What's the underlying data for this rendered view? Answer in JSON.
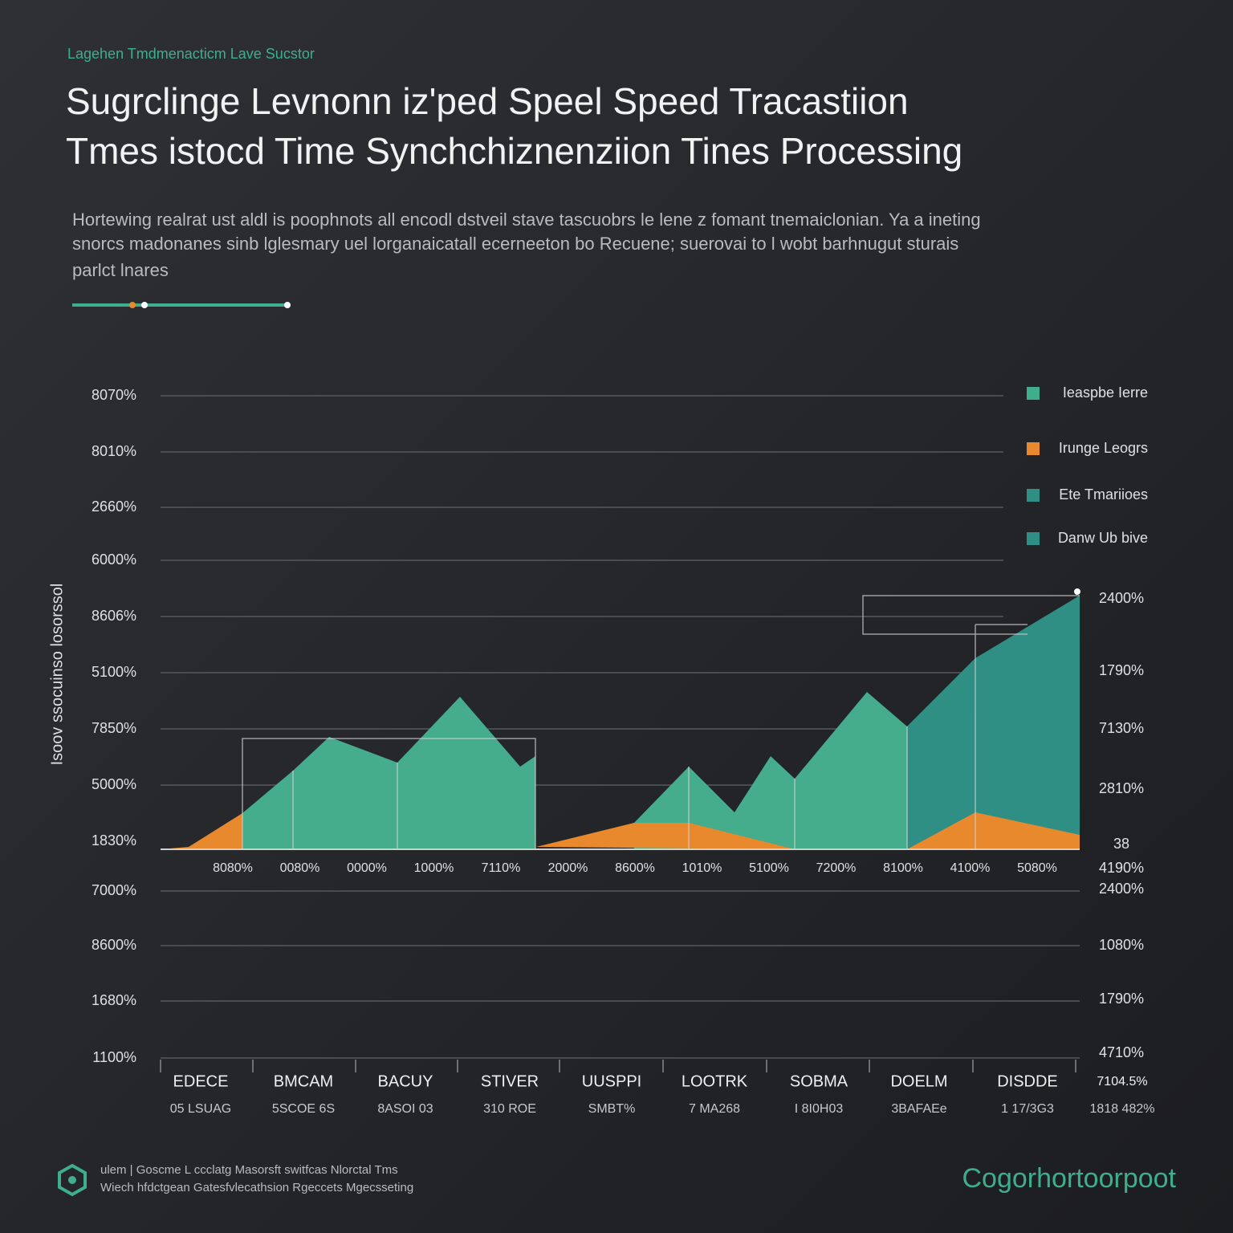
{
  "header": {
    "kicker": "Lagehen Tmdmenacticm Lave Sucstor",
    "title_lines": [
      "Sugrclinge Levnonn iz'ped Speel Speed Tracastiion",
      "Tmes istocd Time Synchchiznenziion Tines Processing"
    ],
    "description_lines": [
      "Hortewing realrat ust aldl is poophnots all encodl dstveil stave tascuobrs le lene z fomant tnemaiclonian. Ya a ineting",
      "snorcs madonanes sinb lglesmary uel lorganaicatall ecerneeton bo Recuene; suerovai to l wobt barhnugut sturais",
      "parlct lnares"
    ]
  },
  "chart": {
    "y_axis_title": "Isoov ssocuinso losorssol",
    "left_labels": [
      "8070%",
      "8010%",
      "2660%",
      "6000%",
      "8606%",
      "5100%",
      "7850%",
      "5000%",
      "1830%",
      "7000%",
      "8600%",
      "1680%",
      "1100%"
    ],
    "right_labels": [
      "2400%",
      "1790%",
      "7130%",
      "2810%",
      "38",
      "4190%",
      "2400%",
      "1080%",
      "1790%",
      "4710%"
    ],
    "x_labels": [
      "8080%",
      "0080%",
      "0000%",
      "1000%",
      "7110%",
      "2000%",
      "8600%",
      "1010%",
      "5100%",
      "7200%",
      "8100%",
      "4100%",
      "5080%"
    ],
    "legend": [
      {
        "name": "Ieaspbe Ierre",
        "color": "#3fae8c"
      },
      {
        "name": "Irunge Leogrs",
        "color": "#e8892e"
      },
      {
        "name": "Ete Tmariioes",
        "color": "#2f8f85"
      },
      {
        "name": "Danw Ub bive",
        "color": "#2f8f85"
      }
    ]
  },
  "table": {
    "headers": [
      "EDECE",
      "BMCAM",
      "BACUY",
      "STIVER",
      "UUSPPI",
      "LOOTRK",
      "SOBMA",
      "DOELM",
      "DISDDE",
      "7104.5%"
    ],
    "rows": [
      [
        "05 LSUAG",
        "5SCOE 6S",
        "8ASOI 03",
        "310 ROE",
        "SMBT%",
        "7 MA268",
        "I 8I0H03",
        "3BAFAEe",
        "1 17/3G3",
        "1818 482%"
      ]
    ]
  },
  "footer": {
    "lines": [
      "ulem | Goscme L ccclatg  Masorsft switfcas Nlorctal Tms",
      "Wiech hfdctgean Gatesfvlecathsion Rgeccets Mgecsseting"
    ],
    "brand": "Cogorhortoorpoot"
  }
}
